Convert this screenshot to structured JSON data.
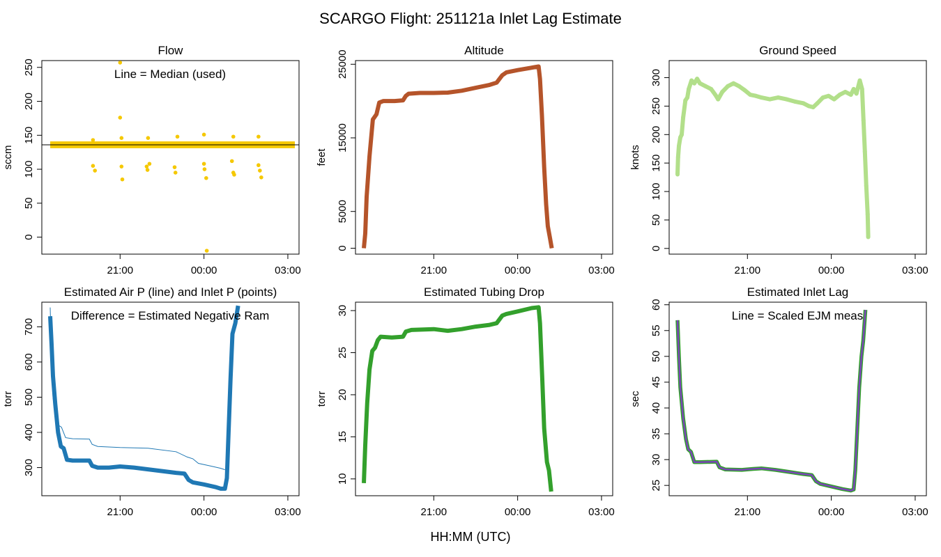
{
  "figure": {
    "title": "SCARGO Flight: 251121a  Inlet Lag Estimate",
    "xlabel": "HH:MM (UTC)"
  },
  "chart_data": [
    {
      "id": "flow",
      "type": "scatter",
      "title": "Flow",
      "ylabel": "sccm",
      "annotation": "Line = Median (used)",
      "color": "#F5C800",
      "line_color": "#000000",
      "xlim": [
        18.2,
        27.4
      ],
      "ylim": [
        -25,
        260
      ],
      "xticks": [
        {
          "v": 21,
          "label": "21:00"
        },
        {
          "v": 24,
          "label": "00:00"
        },
        {
          "v": 27,
          "label": "03:00"
        }
      ],
      "yticks": [
        0,
        50,
        100,
        150,
        200,
        250
      ],
      "band": {
        "x": [
          18.5,
          27.25
        ],
        "y": [
          131,
          141
        ]
      },
      "median_line": 136,
      "outliers": [
        [
          20.03,
          105
        ],
        [
          20.1,
          98
        ],
        [
          20.03,
          143
        ],
        [
          21.0,
          257
        ],
        [
          21.0,
          176
        ],
        [
          21.05,
          104
        ],
        [
          21.08,
          85
        ],
        [
          21.05,
          146
        ],
        [
          21.95,
          104
        ],
        [
          21.98,
          99
        ],
        [
          22.05,
          108
        ],
        [
          22.0,
          146
        ],
        [
          22.95,
          103
        ],
        [
          22.98,
          95
        ],
        [
          23.05,
          148
        ],
        [
          24.0,
          108
        ],
        [
          24.02,
          100
        ],
        [
          24.08,
          87
        ],
        [
          24.0,
          151
        ],
        [
          24.1,
          -20
        ],
        [
          25.0,
          112
        ],
        [
          25.05,
          95
        ],
        [
          25.08,
          92
        ],
        [
          25.05,
          148
        ],
        [
          25.95,
          106
        ],
        [
          26.0,
          98
        ],
        [
          26.05,
          88
        ],
        [
          25.95,
          148
        ]
      ]
    },
    {
      "id": "altitude",
      "type": "line",
      "title": "Altitude",
      "ylabel": "feet",
      "color": "#B5542A",
      "xlim": [
        18.2,
        27.4
      ],
      "ylim": [
        -800,
        25500
      ],
      "xticks": [
        {
          "v": 21,
          "label": "21:00"
        },
        {
          "v": 24,
          "label": "00:00"
        },
        {
          "v": 27,
          "label": "03:00"
        }
      ],
      "yticks": [
        0,
        5000,
        15000,
        25000
      ],
      "series": [
        {
          "name": "altitude",
          "points": [
            [
              18.5,
              0
            ],
            [
              18.55,
              2000
            ],
            [
              18.6,
              7000
            ],
            [
              18.7,
              12500
            ],
            [
              18.82,
              17500
            ],
            [
              18.95,
              18200
            ],
            [
              19.05,
              19800
            ],
            [
              19.2,
              20000
            ],
            [
              19.6,
              20000
            ],
            [
              19.9,
              20100
            ],
            [
              20.0,
              20700
            ],
            [
              20.1,
              21000
            ],
            [
              20.5,
              21100
            ],
            [
              21.0,
              21100
            ],
            [
              21.5,
              21150
            ],
            [
              22.0,
              21400
            ],
            [
              22.5,
              21800
            ],
            [
              23.0,
              22200
            ],
            [
              23.25,
              22500
            ],
            [
              23.45,
              23500
            ],
            [
              23.6,
              23900
            ],
            [
              24.0,
              24200
            ],
            [
              24.6,
              24600
            ],
            [
              24.75,
              24700
            ],
            [
              24.8,
              23000
            ],
            [
              24.87,
              18000
            ],
            [
              24.95,
              11000
            ],
            [
              25.02,
              6000
            ],
            [
              25.08,
              3000
            ],
            [
              25.15,
              1500
            ],
            [
              25.22,
              0
            ]
          ]
        }
      ]
    },
    {
      "id": "ground_speed",
      "type": "scatter",
      "title": "Ground Speed",
      "ylabel": "knots",
      "color": "#B2DF8A",
      "xlim": [
        18.2,
        27.4
      ],
      "ylim": [
        -10,
        330
      ],
      "xticks": [
        {
          "v": 21,
          "label": "21:00"
        },
        {
          "v": 24,
          "label": "00:00"
        },
        {
          "v": 27,
          "label": "03:00"
        }
      ],
      "yticks": [
        0,
        50,
        100,
        150,
        200,
        250,
        300
      ],
      "series": [
        {
          "name": "ground speed",
          "points": [
            [
              18.5,
              130
            ],
            [
              18.52,
              160
            ],
            [
              18.55,
              180
            ],
            [
              18.6,
              195
            ],
            [
              18.65,
              200
            ],
            [
              18.7,
              230
            ],
            [
              18.78,
              260
            ],
            [
              18.85,
              265
            ],
            [
              18.9,
              280
            ],
            [
              19.0,
              295
            ],
            [
              19.1,
              290
            ],
            [
              19.2,
              298
            ],
            [
              19.3,
              290
            ],
            [
              19.5,
              285
            ],
            [
              19.7,
              280
            ],
            [
              19.85,
              270
            ],
            [
              19.95,
              262
            ],
            [
              20.1,
              275
            ],
            [
              20.3,
              285
            ],
            [
              20.5,
              290
            ],
            [
              20.7,
              285
            ],
            [
              20.9,
              278
            ],
            [
              21.1,
              270
            ],
            [
              21.3,
              268
            ],
            [
              21.5,
              265
            ],
            [
              21.8,
              262
            ],
            [
              22.1,
              265
            ],
            [
              22.4,
              262
            ],
            [
              22.7,
              258
            ],
            [
              23.0,
              255
            ],
            [
              23.2,
              250
            ],
            [
              23.35,
              248
            ],
            [
              23.5,
              255
            ],
            [
              23.7,
              265
            ],
            [
              23.9,
              268
            ],
            [
              24.1,
              262
            ],
            [
              24.3,
              270
            ],
            [
              24.5,
              275
            ],
            [
              24.7,
              270
            ],
            [
              24.8,
              280
            ],
            [
              24.9,
              272
            ],
            [
              25.02,
              295
            ],
            [
              25.1,
              280
            ],
            [
              25.15,
              225
            ],
            [
              25.2,
              170
            ],
            [
              25.25,
              110
            ],
            [
              25.3,
              60
            ],
            [
              25.32,
              20
            ]
          ]
        }
      ]
    },
    {
      "id": "pressure",
      "type": "line",
      "title": "Estimated Air P (line) and Inlet P (points)",
      "ylabel": "torr",
      "annotation": "Difference = Estimated Negative Ram",
      "color": "#1F78B4",
      "xlim": [
        18.2,
        27.4
      ],
      "ylim": [
        220,
        770
      ],
      "xticks": [
        {
          "v": 21,
          "label": "21:00"
        },
        {
          "v": 24,
          "label": "00:00"
        },
        {
          "v": 27,
          "label": "03:00"
        }
      ],
      "yticks": [
        300,
        400,
        500,
        600,
        700
      ],
      "series": [
        {
          "name": "Air P",
          "points": [
            [
              18.5,
              755
            ],
            [
              18.55,
              610
            ],
            [
              18.6,
              500
            ],
            [
              18.7,
              440
            ],
            [
              18.8,
              420
            ],
            [
              18.9,
              415
            ],
            [
              19.05,
              385
            ],
            [
              19.3,
              382
            ],
            [
              19.9,
              381
            ],
            [
              20.0,
              366
            ],
            [
              20.2,
              360
            ],
            [
              21.0,
              357
            ],
            [
              22.0,
              355
            ],
            [
              23.0,
              345
            ],
            [
              23.4,
              330
            ],
            [
              23.6,
              325
            ],
            [
              23.8,
              312
            ],
            [
              24.2,
              305
            ],
            [
              24.6,
              298
            ],
            [
              24.75,
              294
            ]
          ]
        },
        {
          "name": "Inlet P",
          "points": [
            [
              18.5,
              730
            ],
            [
              18.55,
              650
            ],
            [
              18.6,
              560
            ],
            [
              18.68,
              480
            ],
            [
              18.78,
              400
            ],
            [
              18.88,
              360
            ],
            [
              18.98,
              355
            ],
            [
              19.1,
              322
            ],
            [
              19.3,
              320
            ],
            [
              19.9,
              320
            ],
            [
              20.0,
              305
            ],
            [
              20.2,
              300
            ],
            [
              20.6,
              300
            ],
            [
              21.0,
              303
            ],
            [
              21.5,
              300
            ],
            [
              22.0,
              295
            ],
            [
              22.5,
              290
            ],
            [
              23.0,
              285
            ],
            [
              23.3,
              283
            ],
            [
              23.45,
              265
            ],
            [
              23.6,
              258
            ],
            [
              24.0,
              252
            ],
            [
              24.4,
              245
            ],
            [
              24.6,
              240
            ],
            [
              24.75,
              240
            ],
            [
              24.82,
              270
            ],
            [
              24.88,
              400
            ],
            [
              24.95,
              550
            ],
            [
              25.02,
              680
            ],
            [
              25.12,
              710
            ],
            [
              25.22,
              760
            ]
          ]
        }
      ]
    },
    {
      "id": "tubing_drop",
      "type": "line",
      "title": "Estimated Tubing Drop",
      "ylabel": "torr",
      "color": "#33A02C",
      "xlim": [
        18.2,
        27.4
      ],
      "ylim": [
        8,
        31
      ],
      "xticks": [
        {
          "v": 21,
          "label": "21:00"
        },
        {
          "v": 24,
          "label": "00:00"
        },
        {
          "v": 27,
          "label": "03:00"
        }
      ],
      "yticks": [
        10,
        15,
        20,
        25,
        30
      ],
      "series": [
        {
          "name": "tubing drop",
          "points": [
            [
              18.5,
              9.5
            ],
            [
              18.55,
              14
            ],
            [
              18.62,
              19
            ],
            [
              18.7,
              23
            ],
            [
              18.8,
              25.2
            ],
            [
              18.9,
              25.6
            ],
            [
              19.0,
              26.5
            ],
            [
              19.1,
              26.9
            ],
            [
              19.5,
              26.8
            ],
            [
              19.9,
              26.9
            ],
            [
              20.0,
              27.5
            ],
            [
              20.2,
              27.7
            ],
            [
              21.0,
              27.8
            ],
            [
              21.5,
              27.6
            ],
            [
              22.0,
              27.8
            ],
            [
              22.5,
              28.1
            ],
            [
              23.0,
              28.3
            ],
            [
              23.25,
              28.5
            ],
            [
              23.45,
              29.4
            ],
            [
              23.6,
              29.6
            ],
            [
              24.0,
              29.9
            ],
            [
              24.5,
              30.3
            ],
            [
              24.75,
              30.4
            ],
            [
              24.8,
              28.5
            ],
            [
              24.88,
              22
            ],
            [
              24.95,
              16
            ],
            [
              25.05,
              12
            ],
            [
              25.12,
              11
            ],
            [
              25.2,
              8.5
            ]
          ]
        }
      ]
    },
    {
      "id": "inlet_lag",
      "type": "line",
      "title": "Estimated Inlet Lag",
      "ylabel": "sec",
      "annotation": "Line = Scaled EJM meas",
      "color": "#33A02C",
      "line_color": "#7B45B8",
      "xlim": [
        18.2,
        27.4
      ],
      "ylim": [
        23,
        60.5
      ],
      "xticks": [
        {
          "v": 21,
          "label": "21:00"
        },
        {
          "v": 24,
          "label": "00:00"
        },
        {
          "v": 27,
          "label": "03:00"
        }
      ],
      "yticks": [
        25,
        30,
        35,
        40,
        45,
        50,
        55,
        60
      ],
      "series": [
        {
          "name": "Scaled EJM meas",
          "points": [
            [
              18.5,
              57
            ],
            [
              18.55,
              50
            ],
            [
              18.6,
              44
            ],
            [
              18.7,
              38
            ],
            [
              18.8,
              34
            ],
            [
              18.88,
              32
            ],
            [
              18.98,
              31.5
            ],
            [
              19.1,
              29.5
            ],
            [
              19.3,
              29.5
            ],
            [
              19.9,
              29.6
            ],
            [
              20.0,
              28.5
            ],
            [
              20.2,
              28.1
            ],
            [
              20.8,
              28.0
            ],
            [
              21.2,
              28.2
            ],
            [
              21.5,
              28.3
            ],
            [
              22.0,
              28.0
            ],
            [
              22.5,
              27.6
            ],
            [
              23.0,
              27.2
            ],
            [
              23.3,
              27.0
            ],
            [
              23.45,
              25.8
            ],
            [
              23.6,
              25.3
            ],
            [
              24.0,
              24.8
            ],
            [
              24.4,
              24.3
            ],
            [
              24.7,
              24.0
            ],
            [
              24.8,
              24.2
            ],
            [
              24.86,
              28
            ],
            [
              24.93,
              36
            ],
            [
              25.0,
              44
            ],
            [
              25.08,
              50
            ],
            [
              25.14,
              53
            ],
            [
              25.22,
              59
            ]
          ]
        }
      ]
    }
  ]
}
